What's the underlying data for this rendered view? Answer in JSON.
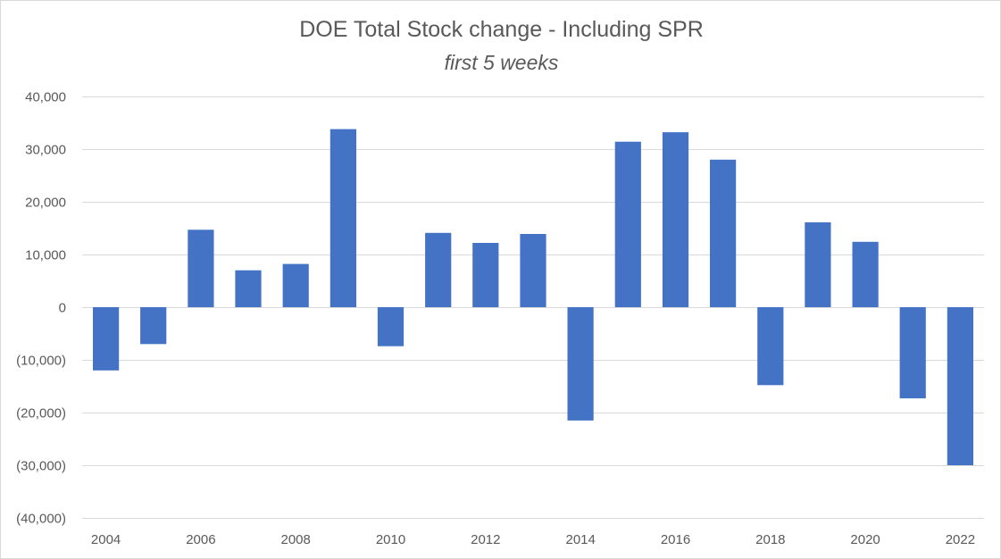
{
  "chart_data": {
    "type": "bar",
    "title": "DOE Total Stock change - Including SPR",
    "subtitle": "first 5 weeks",
    "xlabel": "",
    "ylabel": "",
    "ylim": [
      -40000,
      40000
    ],
    "y_ticks": [
      40000,
      30000,
      20000,
      10000,
      0,
      -10000,
      -20000,
      -30000,
      -40000
    ],
    "y_tick_labels": [
      "40,000",
      "30,000",
      "20,000",
      "10,000",
      "0",
      "(10,000)",
      "(20,000)",
      "(30,000)",
      "(40,000)"
    ],
    "categories": [
      "2004",
      "2005",
      "2006",
      "2007",
      "2008",
      "2009",
      "2010",
      "2011",
      "2012",
      "2013",
      "2014",
      "2015",
      "2016",
      "2017",
      "2018",
      "2019",
      "2020",
      "2021",
      "2022"
    ],
    "x_tick_labels": [
      "2004",
      "",
      "2006",
      "",
      "2008",
      "",
      "2010",
      "",
      "2012",
      "",
      "2014",
      "",
      "2016",
      "",
      "2018",
      "",
      "2020",
      "",
      "2022"
    ],
    "values": [
      -12000,
      -7000,
      14700,
      7000,
      8200,
      33800,
      -7400,
      14100,
      12200,
      13900,
      -21500,
      31400,
      33200,
      28000,
      -14800,
      16100,
      12400,
      -17300,
      -30000
    ],
    "grid": true,
    "legend": "none",
    "bar_color": "#4472c4",
    "grid_color": "#d9d9d9",
    "text_color": "#595959"
  }
}
